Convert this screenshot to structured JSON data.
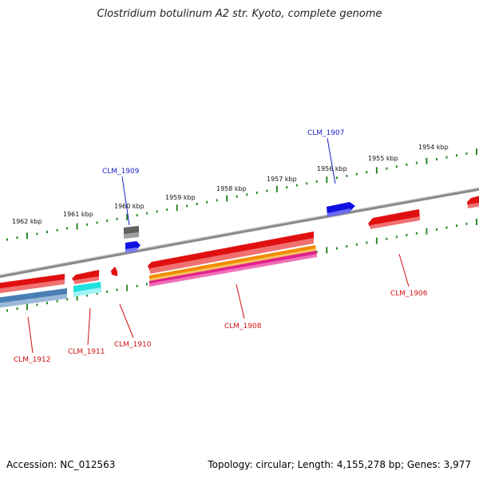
{
  "title": "Clostridium botulinum A2 str. Kyoto, complete genome",
  "footer": {
    "accession": "Accession: NC_012563",
    "topology": "Topology: circular; Length: 4,155,278 bp; Genes: 3,977"
  },
  "colors": {
    "backbone": "#8a8a8a",
    "tick": "#2b8a2b",
    "red_gene": "#e01010",
    "blue_gene": "#1010e0",
    "gray_gene": "#606060",
    "steel_gene": "#4a7fb5",
    "cyan_gene": "#20e0e0",
    "orange_gene": "#f08c00",
    "magenta_gene": "#e0208c",
    "label_blue": "#1c22c8",
    "label_red": "#d01010"
  },
  "kbp_labels": [
    "1962 kbp",
    "1961 kbp",
    "1960 kbp",
    "1959 kbp",
    "1958 kbp",
    "1957 kbp",
    "1956 kbp",
    "1955 kbp",
    "1954 kbp"
  ],
  "gene_labels": {
    "clm_1909": "CLM_1909",
    "clm_1907": "CLM_1907",
    "clm_1906": "CLM_1906",
    "clm_1908": "CLM_1908",
    "clm_1910": "CLM_1910",
    "clm_1911": "CLM_1911",
    "clm_1912": "CLM_1912"
  }
}
